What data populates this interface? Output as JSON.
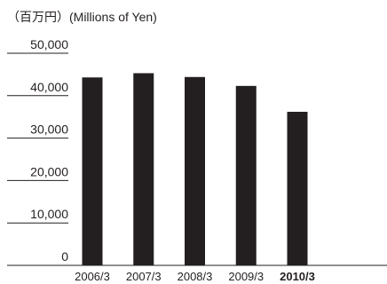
{
  "unit_label": "（百万円）(Millions of Yen)",
  "chart_data": {
    "type": "bar",
    "categories": [
      "2006/3",
      "2007/3",
      "2008/3",
      "2009/3",
      "2010/3"
    ],
    "highlight_category": "2010/3",
    "values": [
      44300,
      45300,
      44400,
      42300,
      36200
    ],
    "ylim": [
      0,
      50000
    ],
    "yticks": [
      0,
      10000,
      20000,
      30000,
      40000,
      50000
    ],
    "ytick_labels": [
      "0",
      "10,000",
      "20,000",
      "30,000",
      "40,000",
      "50,000"
    ],
    "grid": false,
    "colors": {
      "bar": "#231f20",
      "axis": "#231f20"
    }
  }
}
